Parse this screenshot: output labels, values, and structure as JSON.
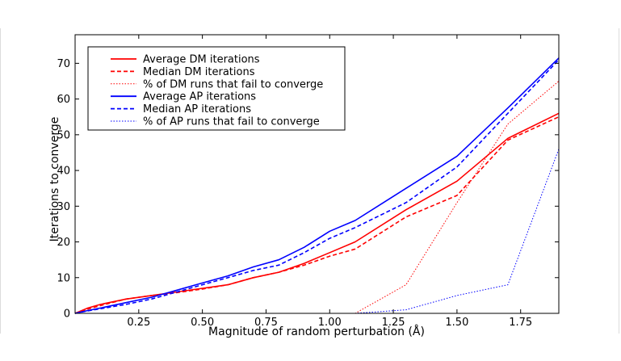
{
  "chart_data": {
    "type": "line",
    "title": "",
    "xlabel": "Magnitude of random perturbation (Å)",
    "ylabel": "Iterations to converge",
    "xlim": [
      0.0,
      1.9
    ],
    "ylim": [
      0,
      78
    ],
    "xticks": [
      0.25,
      0.5,
      0.75,
      1.0,
      1.25,
      1.5,
      1.75
    ],
    "xtick_labels": [
      "0.25",
      "0.50",
      "0.75",
      "1.00",
      "1.25",
      "1.50",
      "1.75"
    ],
    "yticks": [
      0,
      10,
      20,
      30,
      40,
      50,
      60,
      70
    ],
    "ytick_labels": [
      "0",
      "10",
      "20",
      "30",
      "40",
      "50",
      "60",
      "70"
    ],
    "grid": false,
    "legend_position": "top-left",
    "series": [
      {
        "name": "Average DM iterations",
        "color": "#ff0000",
        "style": "solid",
        "x": [
          0.0,
          0.05,
          0.1,
          0.2,
          0.3,
          0.4,
          0.5,
          0.6,
          0.7,
          0.8,
          0.9,
          1.0,
          1.1,
          1.3,
          1.5,
          1.7,
          1.9
        ],
        "y": [
          0,
          1.5,
          2.5,
          4,
          5,
          6,
          7,
          8,
          10,
          11.5,
          14,
          17,
          20,
          29,
          37,
          49,
          56
        ]
      },
      {
        "name": "Median DM iterations",
        "color": "#ff0000",
        "style": "dashed",
        "x": [
          0.0,
          0.05,
          0.1,
          0.2,
          0.3,
          0.4,
          0.5,
          0.6,
          0.7,
          0.8,
          0.9,
          1.0,
          1.1,
          1.3,
          1.5,
          1.7,
          1.9
        ],
        "y": [
          0,
          1.2,
          2.2,
          4,
          5,
          5.8,
          6.8,
          8,
          10,
          11.5,
          13.5,
          16,
          18,
          27,
          33,
          48.5,
          55
        ]
      },
      {
        "name": "% of DM runs that fail to converge",
        "color": "#ff0000",
        "style": "dotted",
        "x": [
          0.0,
          0.25,
          0.5,
          0.75,
          1.0,
          1.1,
          1.3,
          1.5,
          1.7,
          1.9
        ],
        "y": [
          0,
          0,
          0,
          0,
          0,
          0,
          8,
          31,
          53,
          65
        ]
      },
      {
        "name": "Average AP iterations",
        "color": "#0000ff",
        "style": "solid",
        "x": [
          0.0,
          0.05,
          0.1,
          0.2,
          0.3,
          0.4,
          0.5,
          0.6,
          0.7,
          0.8,
          0.9,
          1.0,
          1.1,
          1.3,
          1.5,
          1.7,
          1.9
        ],
        "y": [
          0,
          0.8,
          1.5,
          3,
          4.5,
          6.5,
          8.5,
          10.5,
          13,
          15,
          18.5,
          23,
          26,
          35,
          44,
          57.5,
          71.5
        ]
      },
      {
        "name": "Median AP iterations",
        "color": "#0000ff",
        "style": "dashed",
        "x": [
          0.0,
          0.05,
          0.1,
          0.2,
          0.3,
          0.4,
          0.5,
          0.6,
          0.7,
          0.8,
          0.9,
          1.0,
          1.1,
          1.3,
          1.5,
          1.7,
          1.9
        ],
        "y": [
          0,
          0.7,
          1.3,
          2.5,
          4,
          6,
          8,
          10,
          12,
          13.5,
          17,
          21,
          24,
          31,
          41,
          56,
          71
        ]
      },
      {
        "name": "% of AP runs that fail to converge",
        "color": "#0000ff",
        "style": "dotted",
        "x": [
          0.0,
          0.25,
          0.5,
          0.75,
          1.0,
          1.1,
          1.3,
          1.5,
          1.7,
          1.9
        ],
        "y": [
          0,
          0,
          0,
          0,
          0,
          0,
          1,
          5,
          8,
          46
        ]
      }
    ]
  }
}
